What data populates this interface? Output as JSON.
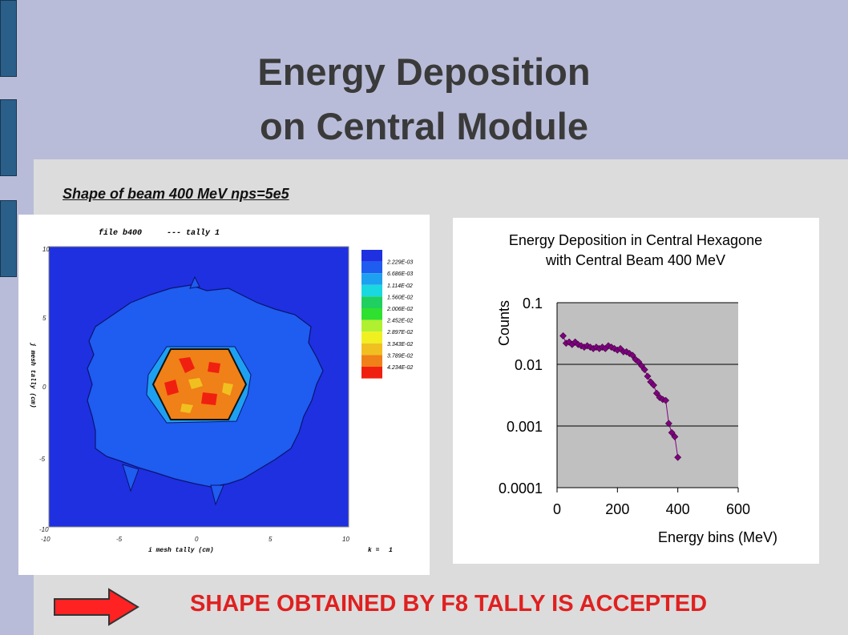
{
  "slide": {
    "title_line1": "Energy Deposition",
    "title_line2": "on Central Module",
    "subtitle": "Shape of beam 400 MeV   nps=5e5",
    "verdict": "SHAPE OBTAINED BY F8 TALLY IS ACCEPTED",
    "arrow_icon": "right-arrow-icon",
    "colors": {
      "background": "#b8bcd8",
      "accent_bars": "#2a5f8a",
      "verdict": "#e02020",
      "arrow": "#ff2222"
    }
  },
  "mesh_plot": {
    "header_file": "file b400",
    "header_tally": "--- tally    1",
    "xlabel": "i mesh tally (cm)",
    "ylabel": "j mesh tally (cm)",
    "k_label": "k =",
    "k_value": "1",
    "x_ticks": [
      "-10",
      "-5",
      "0",
      "5",
      "10"
    ],
    "y_ticks": [
      "10",
      "5",
      "0",
      "-5",
      "-10"
    ],
    "legend": [
      {
        "label": "",
        "color": "#1f30e0"
      },
      {
        "label": "2.229E-03",
        "color": "#1f5cf0"
      },
      {
        "label": "6.686E-03",
        "color": "#1ea0f0"
      },
      {
        "label": "1.114E-02",
        "color": "#19d8e0"
      },
      {
        "label": "1.560E-02",
        "color": "#1fd060"
      },
      {
        "label": "2.006E-02",
        "color": "#30e030"
      },
      {
        "label": "2.452E-02",
        "color": "#b0f030"
      },
      {
        "label": "2.897E-02",
        "color": "#f0f020"
      },
      {
        "label": "3.343E-02",
        "color": "#f0c020"
      },
      {
        "label": "3.789E-02",
        "color": "#f08018"
      },
      {
        "label": "4.234E-02",
        "color": "#f02010"
      }
    ]
  },
  "chart_data": {
    "type": "scatter",
    "title": "Energy Deposition in Central Hexagone",
    "subtitle": "with Central Beam 400 MeV",
    "xlabel": "Energy bins (MeV)",
    "ylabel": "Counts",
    "x_ticks": [
      "0",
      "200",
      "400",
      "600"
    ],
    "y_ticks": [
      "0.1",
      "0.01",
      "0.001",
      "0.0001"
    ],
    "xlim": [
      0,
      600
    ],
    "ylim": [
      0.0001,
      0.1
    ],
    "yscale": "log",
    "grid": "horizontal",
    "series": [
      {
        "color": "#800080",
        "points": [
          [
            20,
            0.029
          ],
          [
            30,
            0.022
          ],
          [
            40,
            0.023
          ],
          [
            50,
            0.021
          ],
          [
            60,
            0.023
          ],
          [
            70,
            0.021
          ],
          [
            80,
            0.02
          ],
          [
            90,
            0.019
          ],
          [
            100,
            0.02
          ],
          [
            110,
            0.019
          ],
          [
            120,
            0.018
          ],
          [
            130,
            0.019
          ],
          [
            140,
            0.018
          ],
          [
            150,
            0.019
          ],
          [
            160,
            0.018
          ],
          [
            170,
            0.02
          ],
          [
            180,
            0.019
          ],
          [
            190,
            0.018
          ],
          [
            200,
            0.017
          ],
          [
            210,
            0.018
          ],
          [
            220,
            0.016
          ],
          [
            230,
            0.016
          ],
          [
            240,
            0.015
          ],
          [
            250,
            0.014
          ],
          [
            260,
            0.012
          ],
          [
            270,
            0.011
          ],
          [
            280,
            0.0095
          ],
          [
            290,
            0.0082
          ],
          [
            300,
            0.0064
          ],
          [
            310,
            0.0052
          ],
          [
            320,
            0.0046
          ],
          [
            330,
            0.0034
          ],
          [
            340,
            0.0029
          ],
          [
            350,
            0.0027
          ],
          [
            360,
            0.0026
          ],
          [
            370,
            0.0011
          ],
          [
            380,
            0.00078
          ],
          [
            390,
            0.00067
          ],
          [
            400,
            0.00031
          ]
        ]
      }
    ]
  }
}
